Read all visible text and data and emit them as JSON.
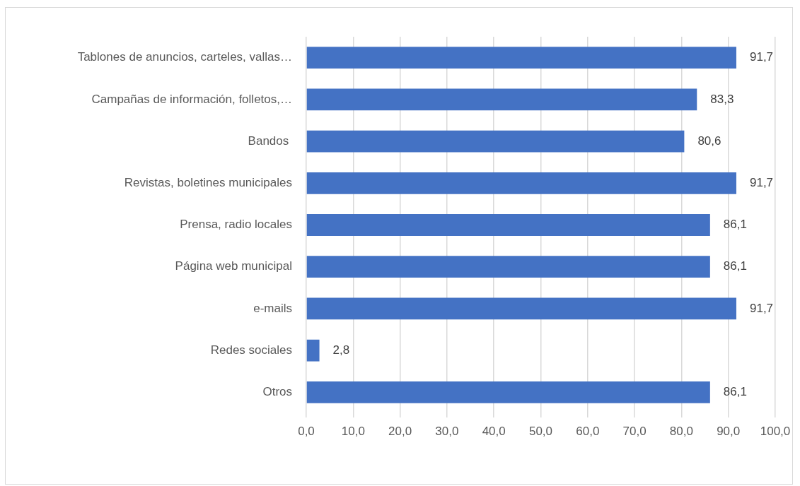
{
  "chart_data": {
    "type": "bar",
    "orientation": "horizontal",
    "categories": [
      "Tablones de anuncios, carteles, vallas…",
      "Campañas de información, folletos,…",
      "Bandos ",
      "Revistas, boletines municipales",
      "Prensa, radio locales",
      "Página web municipal",
      "e-mails",
      "Redes sociales",
      "Otros"
    ],
    "values": [
      91.7,
      83.3,
      80.6,
      91.7,
      86.1,
      86.1,
      91.7,
      2.8,
      86.1
    ],
    "value_labels": [
      "91,7",
      "83,3",
      "80,6",
      "91,7",
      "86,1",
      "86,1",
      "91,7",
      "2,8",
      "86,1"
    ],
    "color": "#4472c4",
    "xlim": [
      0,
      100
    ],
    "xticks": [
      {
        "value": 0,
        "label": "0,0"
      },
      {
        "value": 10,
        "label": "10,0"
      },
      {
        "value": 20,
        "label": "20,0"
      },
      {
        "value": 30,
        "label": "30,0"
      },
      {
        "value": 40,
        "label": "40,0"
      },
      {
        "value": 50,
        "label": "50,0"
      },
      {
        "value": 60,
        "label": "60,0"
      },
      {
        "value": 70,
        "label": "70,0"
      },
      {
        "value": 80,
        "label": "80,0"
      },
      {
        "value": 90,
        "label": "90,0"
      },
      {
        "value": 100,
        "label": "100,0"
      }
    ],
    "grid": "x"
  }
}
